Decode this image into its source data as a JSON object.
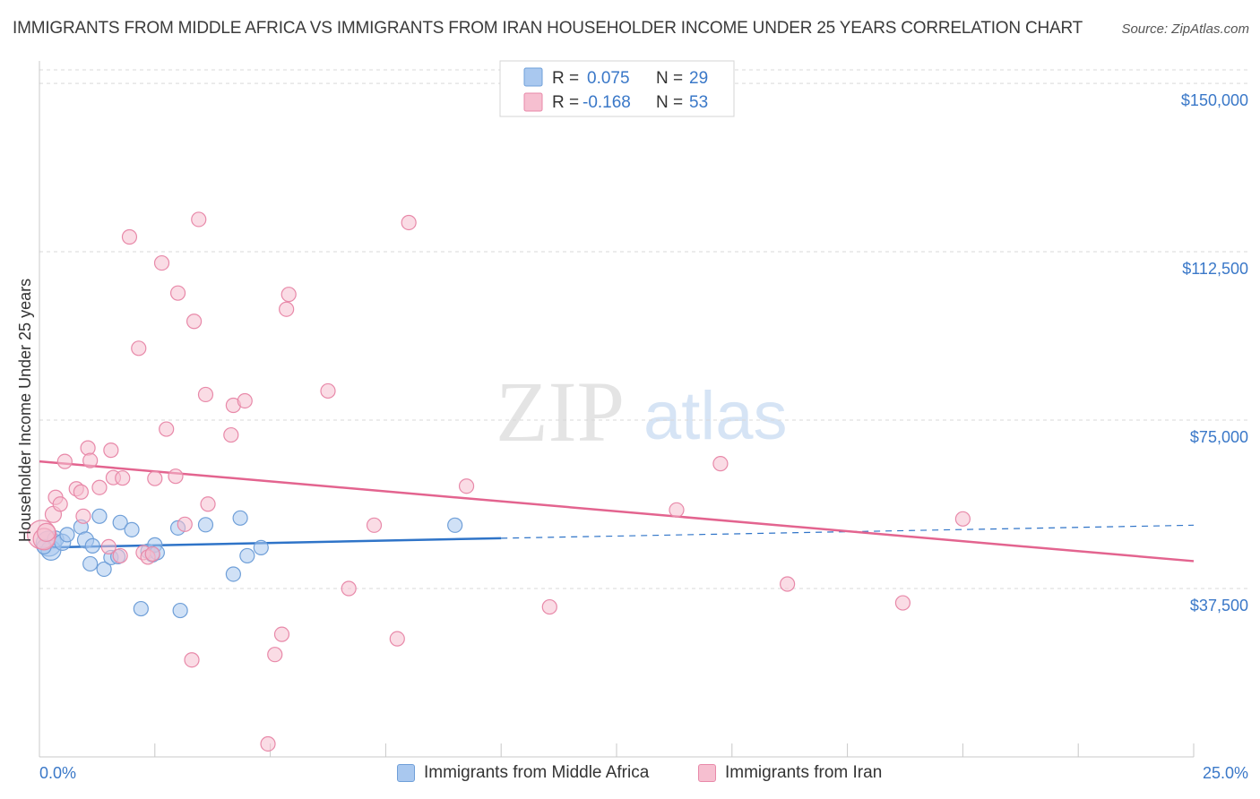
{
  "header": {
    "title": "IMMIGRANTS FROM MIDDLE AFRICA VS IMMIGRANTS FROM IRAN HOUSEHOLDER INCOME UNDER 25 YEARS CORRELATION CHART",
    "source": "Source: ZipAtlas.com"
  },
  "watermark": {
    "zip": "ZIP",
    "atlas": "atlas"
  },
  "colors": {
    "blue_fill": "#a9c8ef",
    "blue_stroke": "#6f9fd8",
    "blue_line": "#2f74c8",
    "pink_fill": "#f6bfd0",
    "pink_stroke": "#e889a9",
    "pink_line": "#e3648f",
    "tick_label": "#3a78c8",
    "grid": "#d9d9d9"
  },
  "legend_top": {
    "series": [
      {
        "r_label": "R =",
        "r_value": "0.075",
        "n_label": "N =",
        "n_value": "29"
      },
      {
        "r_label": "R =",
        "r_value": "-0.168",
        "n_label": "N =",
        "n_value": "53"
      }
    ]
  },
  "chart_data": {
    "type": "scatter",
    "title": "IMMIGRANTS FROM MIDDLE AFRICA VS IMMIGRANTS FROM IRAN HOUSEHOLDER INCOME UNDER 25 YEARS CORRELATION CHART",
    "xlabel": "",
    "ylabel": "Householder Income Under 25 years",
    "xlim": [
      0,
      25
    ],
    "ylim": [
      0,
      155000
    ],
    "x_tick_labels": [
      "0.0%",
      "25.0%"
    ],
    "y_ticks": [
      37500,
      75000,
      112500,
      150000
    ],
    "y_tick_labels": [
      "$37,500",
      "$75,000",
      "$112,500",
      "$150,000"
    ],
    "series": [
      {
        "name": "Immigrants from Middle Africa",
        "color": "blue",
        "r": 0.075,
        "n": 29,
        "trend": {
          "x0": 0,
          "y0": 46600,
          "x1": 10,
          "y1": 48700,
          "dash_to_x": 25,
          "dash_to_y": 51600
        },
        "points": [
          [
            0.2,
            47500,
            14
          ],
          [
            0.25,
            46000,
            11
          ],
          [
            0.35,
            48500,
            9
          ],
          [
            0.5,
            47800,
            9
          ],
          [
            0.6,
            49500,
            8
          ],
          [
            0.9,
            51200,
            8
          ],
          [
            1.0,
            48300,
            9
          ],
          [
            1.1,
            43000,
            8
          ],
          [
            1.15,
            47000,
            8
          ],
          [
            1.3,
            53600,
            8
          ],
          [
            1.4,
            41800,
            8
          ],
          [
            1.55,
            44400,
            8
          ],
          [
            1.7,
            44600,
            8
          ],
          [
            1.75,
            52200,
            8
          ],
          [
            2.0,
            50600,
            8
          ],
          [
            2.2,
            33000,
            8
          ],
          [
            2.35,
            45800,
            8
          ],
          [
            2.45,
            45000,
            8
          ],
          [
            2.5,
            47200,
            8
          ],
          [
            2.55,
            45500,
            8
          ],
          [
            3.0,
            51000,
            8
          ],
          [
            3.05,
            32600,
            8
          ],
          [
            3.6,
            51700,
            8
          ],
          [
            4.2,
            40700,
            8
          ],
          [
            4.35,
            53200,
            8
          ],
          [
            4.5,
            44800,
            8
          ],
          [
            4.8,
            46600,
            8
          ],
          [
            9.0,
            51600,
            8
          ],
          [
            0.1,
            46800,
            8
          ]
        ]
      },
      {
        "name": "Immigrants from Iran",
        "color": "pink",
        "r": -0.168,
        "n": 53,
        "trend": {
          "x0": 0,
          "y0": 65800,
          "x1": 25,
          "y1": 43600
        },
        "points": [
          [
            0.05,
            49500,
            16
          ],
          [
            0.1,
            48500,
            12
          ],
          [
            0.15,
            50000,
            10
          ],
          [
            0.3,
            54000,
            9
          ],
          [
            0.35,
            57800,
            8
          ],
          [
            0.45,
            56300,
            8
          ],
          [
            0.55,
            65800,
            8
          ],
          [
            0.8,
            59700,
            8
          ],
          [
            0.9,
            59000,
            8
          ],
          [
            0.95,
            53600,
            8
          ],
          [
            1.05,
            68800,
            8
          ],
          [
            1.1,
            66000,
            8
          ],
          [
            1.3,
            60000,
            8
          ],
          [
            1.5,
            46800,
            8
          ],
          [
            1.55,
            68300,
            8
          ],
          [
            1.6,
            62200,
            8
          ],
          [
            1.75,
            44800,
            8
          ],
          [
            1.8,
            62100,
            8
          ],
          [
            1.95,
            115800,
            8
          ],
          [
            2.15,
            91000,
            8
          ],
          [
            2.25,
            45500,
            8
          ],
          [
            2.35,
            44500,
            8
          ],
          [
            2.45,
            45200,
            8
          ],
          [
            2.5,
            62000,
            8
          ],
          [
            2.65,
            110000,
            8
          ],
          [
            2.75,
            73000,
            8
          ],
          [
            2.95,
            62500,
            8
          ],
          [
            3.0,
            103300,
            8
          ],
          [
            3.15,
            51800,
            8
          ],
          [
            3.3,
            21600,
            8
          ],
          [
            3.35,
            97000,
            8
          ],
          [
            3.45,
            119700,
            8
          ],
          [
            3.6,
            80700,
            8
          ],
          [
            3.65,
            56300,
            8
          ],
          [
            4.15,
            71700,
            8
          ],
          [
            4.2,
            78300,
            8
          ],
          [
            4.45,
            79300,
            8
          ],
          [
            4.95,
            2900,
            8
          ],
          [
            5.1,
            22800,
            8
          ],
          [
            5.25,
            27300,
            8
          ],
          [
            5.35,
            99700,
            8
          ],
          [
            5.4,
            103000,
            8
          ],
          [
            6.25,
            81500,
            8
          ],
          [
            6.7,
            37500,
            8
          ],
          [
            7.25,
            51600,
            8
          ],
          [
            7.75,
            26300,
            8
          ],
          [
            8.0,
            119000,
            8
          ],
          [
            9.25,
            60300,
            8
          ],
          [
            11.05,
            33400,
            8
          ],
          [
            13.8,
            55000,
            8
          ],
          [
            14.75,
            65300,
            8
          ],
          [
            16.2,
            38500,
            8
          ],
          [
            18.7,
            34300,
            8
          ],
          [
            20.0,
            53000,
            8
          ]
        ]
      }
    ]
  }
}
